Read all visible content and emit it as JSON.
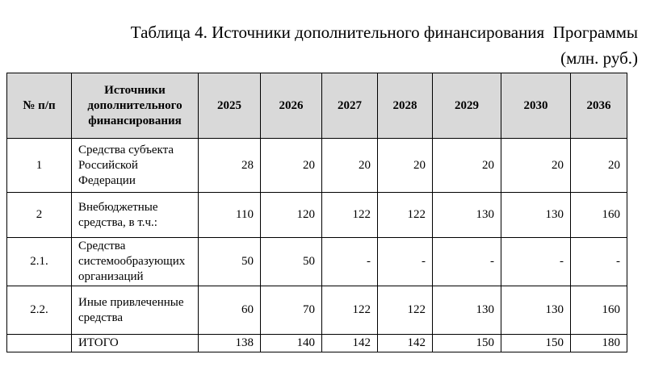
{
  "title": "Таблица 4. Источники дополнительного финансирования  Программы",
  "subtitle": "(млн. руб.)",
  "table": {
    "header": [
      "№ п/п",
      "Источники дополнительного финансирования",
      "2025",
      "2026",
      "2027",
      "2028",
      "2029",
      "2030",
      "2036"
    ],
    "rows": [
      [
        "1",
        "Средства субъекта Российской Федерации",
        "28",
        "20",
        "20",
        "20",
        "20",
        "20",
        "20"
      ],
      [
        "2",
        "Внебюджетные средства, в т.ч.:",
        "110",
        "120",
        "122",
        "122",
        "130",
        "130",
        "160"
      ],
      [
        "2.1.",
        "Средства системообразующих организаций",
        "50",
        "50",
        "-",
        "-",
        "-",
        "-",
        "-"
      ],
      [
        "2.2.",
        "Иные привлеченные средства",
        "60",
        "70",
        "122",
        "122",
        "130",
        "130",
        "160"
      ]
    ],
    "total": {
      "label": "ИТОГО",
      "values": [
        "138",
        "140",
        "142",
        "142",
        "150",
        "150",
        "180"
      ]
    }
  }
}
